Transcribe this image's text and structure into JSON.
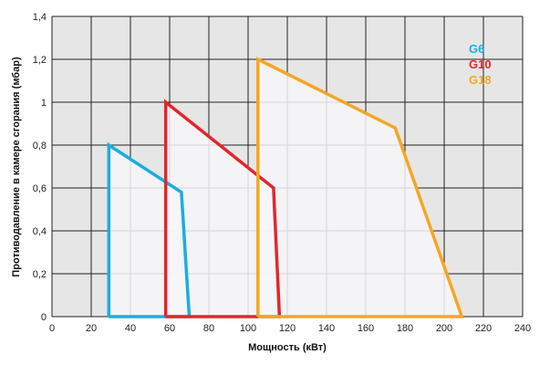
{
  "chart_data": {
    "type": "area",
    "xlabel": "Мощность  (кВт)",
    "ylabel": "Противодавление в камере сгорания (мбар)",
    "xlim": [
      0,
      240
    ],
    "ylim": [
      0,
      1.4
    ],
    "x_ticks": [
      "0",
      "20",
      "40",
      "60",
      "80",
      "100",
      "120",
      "140",
      "160",
      "180",
      "200",
      "220",
      "240"
    ],
    "y_ticks": [
      "0",
      "0,2",
      "0,4",
      "0,6",
      "0,8",
      "1",
      "1,2",
      "1,4"
    ],
    "grid": true,
    "legend_position": "top-right",
    "series": [
      {
        "name": "G6",
        "color": "#1aaee0",
        "x": [
          29,
          29,
          66,
          70,
          29
        ],
        "y": [
          0,
          0.8,
          0.58,
          0,
          0
        ]
      },
      {
        "name": "G10",
        "color": "#e3262e",
        "x": [
          58,
          58,
          113,
          116,
          58
        ],
        "y": [
          0,
          1.0,
          0.6,
          0,
          0
        ]
      },
      {
        "name": "G18",
        "color": "#f5a623",
        "x": [
          105,
          105,
          175,
          209,
          105
        ],
        "y": [
          0,
          1.2,
          0.88,
          0,
          0
        ]
      }
    ]
  }
}
